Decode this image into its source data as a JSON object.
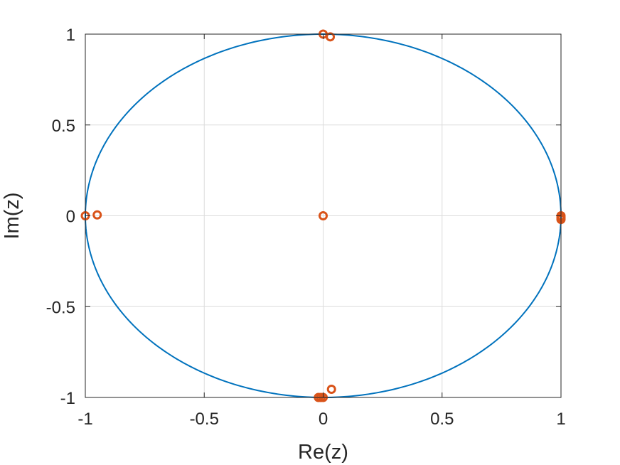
{
  "chart_data": {
    "type": "scatter",
    "xlabel": "Re(z)",
    "ylabel": "Im(z)",
    "xlim": [
      -1,
      1
    ],
    "ylim": [
      -1,
      1
    ],
    "x_ticks": [
      -1,
      -0.5,
      0,
      0.5,
      1
    ],
    "y_ticks": [
      -1,
      -0.5,
      0,
      0.5,
      1
    ],
    "x_tick_labels": [
      "-1",
      "-0.5",
      "0",
      "0.5",
      "1"
    ],
    "y_tick_labels": [
      "-1",
      "-0.5",
      "0",
      "0.5",
      "1"
    ],
    "grid": true,
    "series": [
      {
        "kind": "line",
        "curve": "unit circle",
        "color": "#0072BD"
      },
      {
        "kind": "scatter",
        "marker": "circle",
        "color": "#D95319",
        "points": [
          {
            "x": 0.0,
            "y": 1.0
          },
          {
            "x": 0.03,
            "y": 0.985
          },
          {
            "x": -1.0,
            "y": 0.0
          },
          {
            "x": -0.95,
            "y": 0.005
          },
          {
            "x": 0.0,
            "y": 0.0
          },
          {
            "x": 1.0,
            "y": 0.0
          },
          {
            "x": 1.0,
            "y": -0.01
          },
          {
            "x": 1.0,
            "y": -0.02
          },
          {
            "x": -0.02,
            "y": -1.0
          },
          {
            "x": -0.01,
            "y": -1.0
          },
          {
            "x": 0.0,
            "y": -1.0
          },
          {
            "x": 0.035,
            "y": -0.955
          }
        ]
      }
    ]
  }
}
